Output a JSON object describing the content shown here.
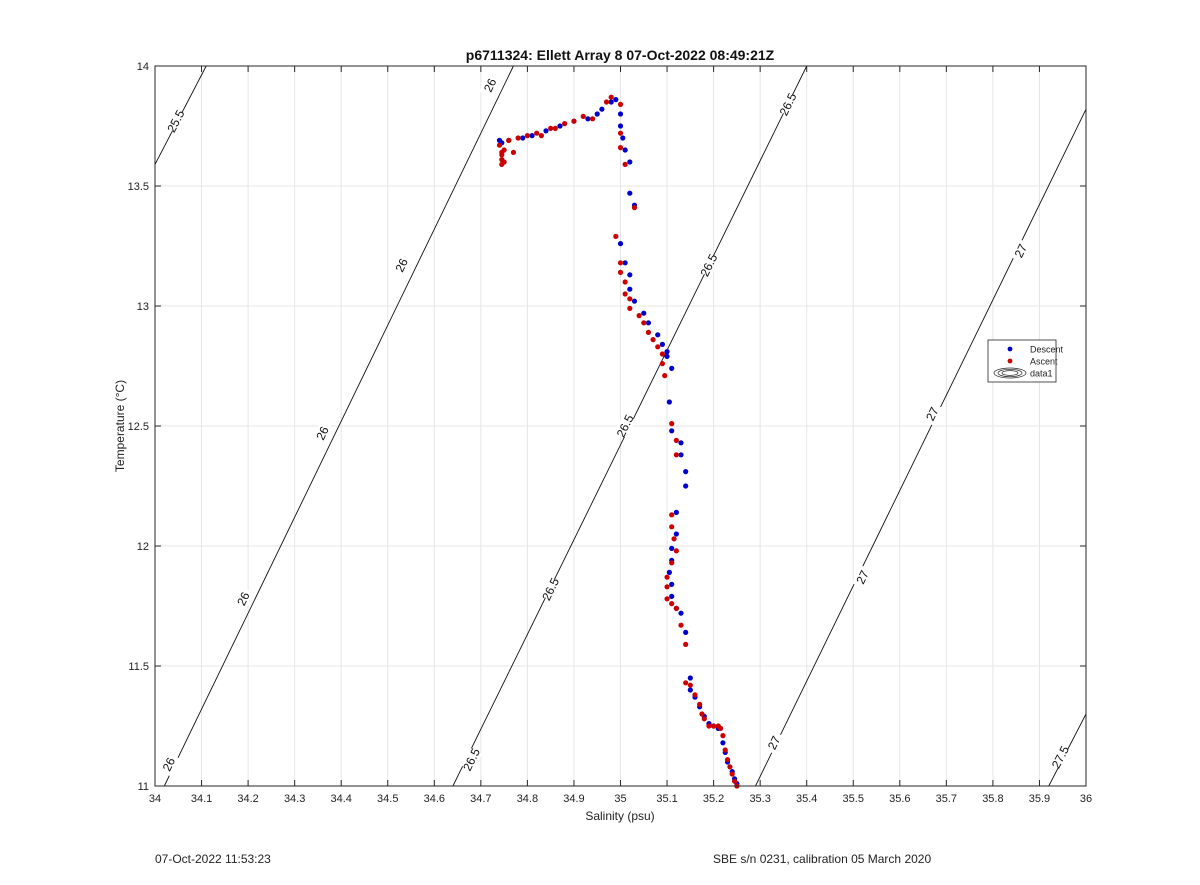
{
  "chart_data": {
    "type": "scatter",
    "title": "p6711324: Ellett Array 8 07-Oct-2022 08:49:21Z",
    "xlabel": "Salinity (psu)",
    "ylabel": "Temperature (°C)",
    "xlim": [
      34,
      36
    ],
    "ylim": [
      11,
      14
    ],
    "grid": true,
    "xticks": [
      "34",
      "34.1",
      "34.2",
      "34.3",
      "34.4",
      "34.5",
      "34.6",
      "34.7",
      "34.8",
      "34.9",
      "35",
      "35.1",
      "35.2",
      "35.3",
      "35.4",
      "35.5",
      "35.6",
      "35.7",
      "35.8",
      "35.9",
      "36"
    ],
    "yticks": [
      "11",
      "11.5",
      "12",
      "12.5",
      "13",
      "13.5",
      "14"
    ],
    "legend": {
      "placement": "right",
      "entries": [
        "Descent",
        "Ascent",
        "data1"
      ]
    },
    "series": [
      {
        "name": "Descent",
        "color": "#0000cc",
        "points": [
          [
            34.74,
            13.69
          ],
          [
            34.745,
            13.68
          ],
          [
            34.76,
            13.69
          ],
          [
            34.79,
            13.7
          ],
          [
            34.81,
            13.71
          ],
          [
            34.84,
            13.73
          ],
          [
            34.87,
            13.75
          ],
          [
            34.9,
            13.77
          ],
          [
            34.93,
            13.78
          ],
          [
            34.95,
            13.8
          ],
          [
            34.96,
            13.82
          ],
          [
            34.98,
            13.85
          ],
          [
            34.99,
            13.86
          ],
          [
            35.0,
            13.8
          ],
          [
            35.0,
            13.75
          ],
          [
            35.005,
            13.7
          ],
          [
            35.01,
            13.65
          ],
          [
            35.02,
            13.6
          ],
          [
            35.02,
            13.47
          ],
          [
            35.03,
            13.42
          ],
          [
            35.0,
            13.26
          ],
          [
            35.01,
            13.18
          ],
          [
            35.02,
            13.13
          ],
          [
            35.02,
            13.07
          ],
          [
            35.03,
            13.02
          ],
          [
            35.05,
            12.97
          ],
          [
            35.06,
            12.93
          ],
          [
            35.08,
            12.88
          ],
          [
            35.09,
            12.84
          ],
          [
            35.1,
            12.81
          ],
          [
            35.1,
            12.79
          ],
          [
            35.11,
            12.74
          ],
          [
            35.105,
            12.6
          ],
          [
            35.11,
            12.48
          ],
          [
            35.13,
            12.43
          ],
          [
            35.13,
            12.38
          ],
          [
            35.14,
            12.31
          ],
          [
            35.14,
            12.25
          ],
          [
            35.12,
            12.14
          ],
          [
            35.12,
            12.05
          ],
          [
            35.11,
            11.99
          ],
          [
            35.11,
            11.94
          ],
          [
            35.105,
            11.89
          ],
          [
            35.11,
            11.84
          ],
          [
            35.11,
            11.79
          ],
          [
            35.12,
            11.74
          ],
          [
            35.13,
            11.72
          ],
          [
            35.14,
            11.64
          ],
          [
            35.15,
            11.45
          ],
          [
            35.15,
            11.4
          ],
          [
            35.16,
            11.37
          ],
          [
            35.17,
            11.33
          ],
          [
            35.18,
            11.29
          ],
          [
            35.19,
            11.26
          ],
          [
            35.2,
            11.25
          ],
          [
            35.21,
            11.24
          ],
          [
            35.22,
            11.18
          ],
          [
            35.225,
            11.14
          ],
          [
            35.23,
            11.1
          ],
          [
            35.24,
            11.06
          ],
          [
            35.245,
            11.03
          ],
          [
            35.25,
            11.01
          ]
        ]
      },
      {
        "name": "Ascent",
        "color": "#cc0000",
        "points": [
          [
            34.74,
            13.67
          ],
          [
            34.745,
            13.64
          ],
          [
            34.745,
            13.61
          ],
          [
            34.745,
            13.59
          ],
          [
            34.75,
            13.6
          ],
          [
            34.745,
            13.63
          ],
          [
            34.75,
            13.65
          ],
          [
            34.77,
            13.64
          ],
          [
            34.76,
            13.69
          ],
          [
            34.78,
            13.7
          ],
          [
            34.8,
            13.71
          ],
          [
            34.82,
            13.72
          ],
          [
            34.83,
            13.71
          ],
          [
            34.85,
            13.74
          ],
          [
            34.86,
            13.74
          ],
          [
            34.88,
            13.76
          ],
          [
            34.9,
            13.77
          ],
          [
            34.92,
            13.79
          ],
          [
            34.94,
            13.78
          ],
          [
            34.97,
            13.85
          ],
          [
            34.98,
            13.87
          ],
          [
            35.0,
            13.84
          ],
          [
            35.0,
            13.72
          ],
          [
            35.0,
            13.66
          ],
          [
            35.01,
            13.59
          ],
          [
            35.03,
            13.41
          ],
          [
            34.99,
            13.29
          ],
          [
            35.0,
            13.18
          ],
          [
            35.0,
            13.14
          ],
          [
            35.01,
            13.1
          ],
          [
            35.01,
            13.05
          ],
          [
            35.02,
            13.03
          ],
          [
            35.02,
            12.99
          ],
          [
            35.04,
            12.96
          ],
          [
            35.05,
            12.93
          ],
          [
            35.06,
            12.89
          ],
          [
            35.07,
            12.86
          ],
          [
            35.08,
            12.83
          ],
          [
            35.09,
            12.8
          ],
          [
            35.09,
            12.76
          ],
          [
            35.095,
            12.71
          ],
          [
            35.11,
            12.51
          ],
          [
            35.12,
            12.44
          ],
          [
            35.12,
            12.38
          ],
          [
            35.11,
            12.13
          ],
          [
            35.11,
            12.08
          ],
          [
            35.115,
            12.03
          ],
          [
            35.12,
            11.98
          ],
          [
            35.11,
            11.93
          ],
          [
            35.1,
            11.87
          ],
          [
            35.1,
            11.83
          ],
          [
            35.1,
            11.78
          ],
          [
            35.11,
            11.76
          ],
          [
            35.12,
            11.74
          ],
          [
            35.13,
            11.67
          ],
          [
            35.14,
            11.59
          ],
          [
            35.14,
            11.43
          ],
          [
            35.15,
            11.42
          ],
          [
            35.16,
            11.38
          ],
          [
            35.17,
            11.34
          ],
          [
            35.175,
            11.3
          ],
          [
            35.18,
            11.28
          ],
          [
            35.19,
            11.25
          ],
          [
            35.2,
            11.25
          ],
          [
            35.21,
            11.25
          ],
          [
            35.215,
            11.24
          ],
          [
            35.22,
            11.21
          ],
          [
            35.225,
            11.15
          ],
          [
            35.23,
            11.11
          ],
          [
            35.235,
            11.08
          ],
          [
            35.24,
            11.05
          ],
          [
            35.245,
            11.02
          ],
          [
            35.25,
            11.0
          ]
        ]
      }
    ],
    "contours": [
      {
        "level": "25.5",
        "segments": [
          [
            [
              34.0,
              13.59
            ],
            [
              34.11,
              14.0
            ]
          ]
        ],
        "labels": [
          [
            34.045,
            13.77
          ]
        ]
      },
      {
        "level": "26",
        "segments": [
          [
            [
              34.02,
              11.0
            ],
            [
              34.77,
              14.0
            ]
          ]
        ],
        "labels": [
          [
            34.03,
            11.09
          ],
          [
            34.19,
            11.78
          ],
          [
            34.36,
            12.47
          ],
          [
            34.53,
            13.17
          ],
          [
            34.72,
            13.92
          ]
        ]
      },
      {
        "level": "26.5",
        "segments": [
          [
            [
              34.64,
              11.0
            ],
            [
              35.4,
              14.0
            ]
          ]
        ],
        "labels": [
          [
            34.68,
            11.11
          ],
          [
            34.85,
            11.82
          ],
          [
            35.01,
            12.5
          ],
          [
            35.19,
            13.17
          ],
          [
            35.36,
            13.84
          ]
        ]
      },
      {
        "level": "27",
        "segments": [
          [
            [
              35.29,
              11.0
            ],
            [
              36.0,
              13.82
            ]
          ]
        ],
        "labels": [
          [
            35.33,
            11.18
          ],
          [
            35.52,
            11.87
          ],
          [
            35.67,
            12.55
          ],
          [
            35.86,
            13.23
          ]
        ]
      },
      {
        "level": "27.5",
        "segments": [
          [
            [
              35.92,
              11.0
            ],
            [
              36.0,
              11.3
            ]
          ]
        ],
        "labels": [
          [
            35.945,
            11.12
          ]
        ]
      }
    ]
  },
  "footer": {
    "left_text": "07-Oct-2022 11:53:23",
    "right_text": "SBE s/n 0231, calibration 05 March 2020"
  }
}
